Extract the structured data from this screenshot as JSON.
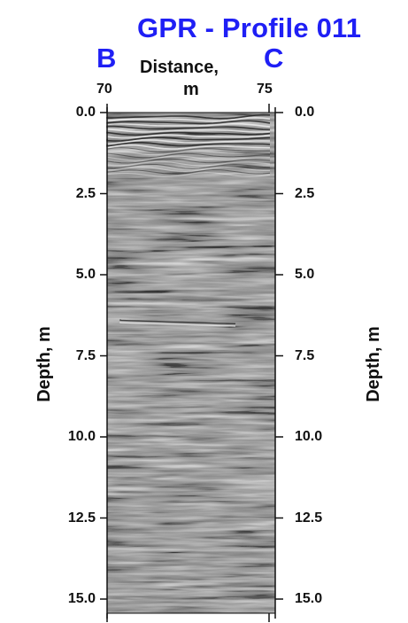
{
  "header": {
    "title": "GPR - Profile 011",
    "left_marker": "B",
    "right_marker": "C"
  },
  "x_axis": {
    "label_line1": "Distance,",
    "label_line2": "m",
    "ticks": [
      "70",
      "75"
    ]
  },
  "y_axis": {
    "label": "Depth, m",
    "ticks": [
      "0.0",
      "2.5",
      "5.0",
      "7.5",
      "10.0",
      "12.5",
      "15.0"
    ]
  },
  "colors": {
    "title": "#1f1ff5",
    "markers": "#1f1ff5",
    "axis": "#111111",
    "radargram_base": "#8a8a8a"
  }
}
